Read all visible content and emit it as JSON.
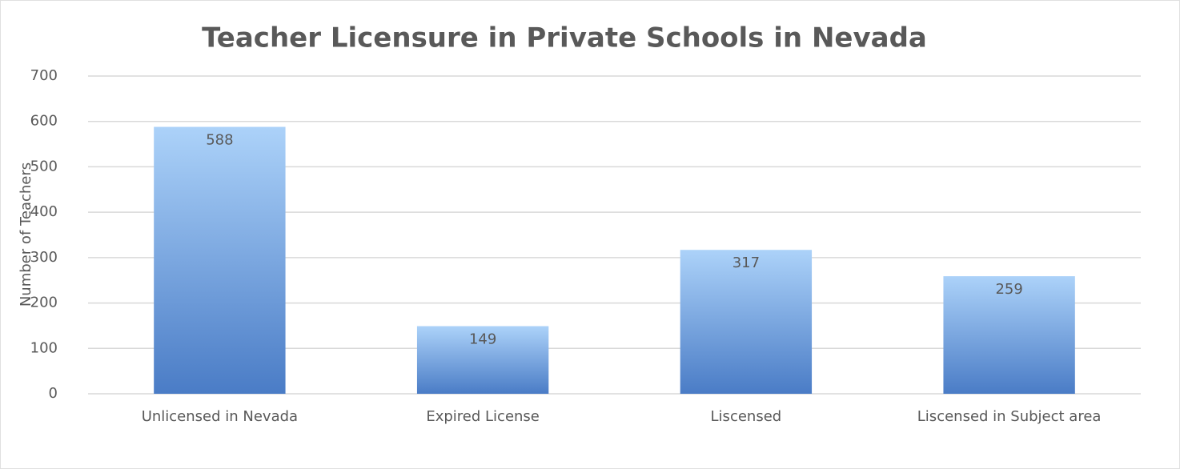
{
  "chart_data": {
    "type": "bar",
    "title": "Teacher Licensure in Private Schools in Nevada",
    "y_label": "Number of Teachers",
    "categories": [
      "Unlicensed in Nevada",
      "Expired License",
      "Liscensed",
      "Liscensed in Subject area"
    ],
    "values": [
      588,
      149,
      317,
      259
    ],
    "color": [
      "#acd2f9",
      "#4a7cc6"
    ],
    "data_labels": true,
    "ylim": [
      0,
      700
    ],
    "yticks": [
      0,
      100,
      200,
      300,
      400,
      500,
      600,
      700
    ],
    "grid": true
  }
}
